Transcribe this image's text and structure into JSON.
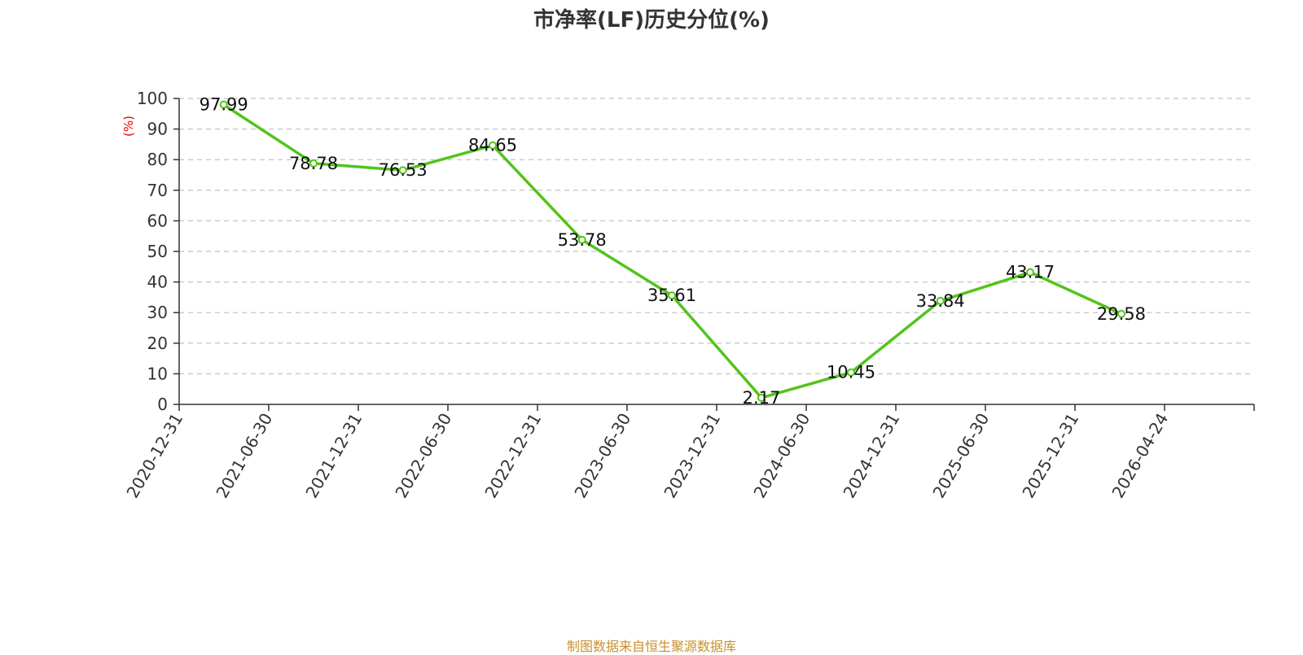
{
  "title": "市净率(LF)历史分位(%)",
  "source": "制图数据来自恒生聚源数据库",
  "colors": {
    "line": "#52c41a",
    "ylabel": "#e60000",
    "source": "#c8902d",
    "axis": "#333333",
    "grid": "#cccccc"
  },
  "chart_data": {
    "type": "line",
    "title": "市净率(LF)历史分位(%)",
    "ylabel": "(%)",
    "xlabel": "",
    "categories": [
      "2020-12-31",
      "2021-06-30",
      "2021-12-31",
      "2022-06-30",
      "2022-12-31",
      "2023-06-30",
      "2023-12-31",
      "2024-06-30",
      "2024-12-31",
      "2025-06-30",
      "2025-12-31",
      "2026-04-24"
    ],
    "series": [
      {
        "x": [
          "2021-03-31",
          "2021-09-30",
          "2022-03-31",
          "2022-09-30",
          "2023-03-31",
          "2023-09-30",
          "2024-03-31",
          "2024-09-30",
          "2025-03-31",
          "2025-09-30",
          "2026-02-28"
        ],
        "values": [
          97.99,
          78.78,
          76.53,
          84.65,
          53.78,
          35.61,
          2.17,
          10.45,
          33.84,
          43.17,
          29.58
        ],
        "labels": [
          "97.99",
          "78.78",
          "76.53",
          "84.65",
          "53.78",
          "35.61",
          "2.17",
          "10.45",
          "33.84",
          "43.17",
          "29.58"
        ]
      }
    ],
    "ylim": [
      0,
      100
    ],
    "yticks": [
      0,
      10,
      20,
      30,
      40,
      50,
      60,
      70,
      80,
      90,
      100
    ],
    "grid": "horizontal dashed",
    "legend": "none"
  }
}
